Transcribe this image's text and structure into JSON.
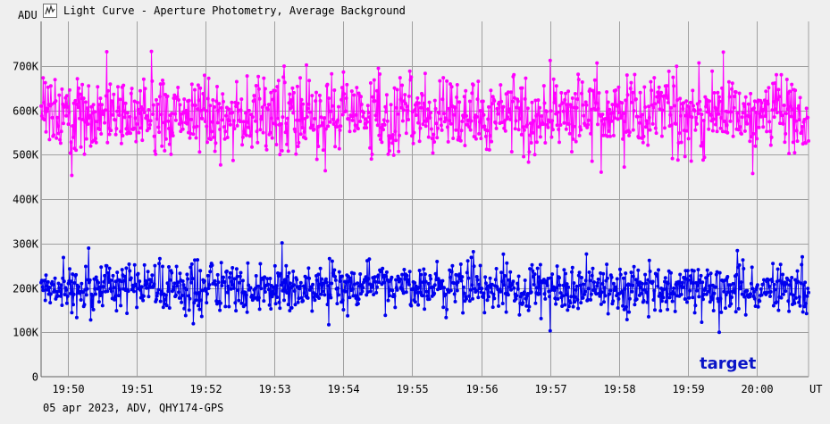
{
  "window": {
    "title": "Light Curve - Aperture Photometry, Average Background",
    "footer": "05 apr 2023, ADV, QHY174-GPS"
  },
  "icons": {
    "app": "light-curve-app-icon"
  },
  "colors": {
    "background": "#efefef",
    "grid": "#a0a0a0",
    "series_target": "#0000ee",
    "series_label": "#0a14c8",
    "series_comparison": "#ff00ff"
  },
  "chart_data": {
    "type": "line",
    "title": "Light Curve - Aperture Photometry, Average Background",
    "ylabel": "ADU",
    "xlabel": "UT",
    "ylim": [
      0,
      800000
    ],
    "xlim": [
      "19:49:37",
      "20:00:45"
    ],
    "grid": true,
    "y_ticks": [
      0,
      100000,
      200000,
      300000,
      400000,
      500000,
      600000,
      700000
    ],
    "y_tick_labels": [
      "0",
      "100K",
      "200K",
      "300K",
      "400K",
      "500K",
      "600K",
      "700K"
    ],
    "x_tick_labels": [
      "19:50",
      "19:51",
      "19:52",
      "19:53",
      "19:54",
      "19:55",
      "19:56",
      "19:57",
      "19:58",
      "19:59",
      "20:00"
    ],
    "markers": true,
    "series": [
      {
        "name": "target",
        "color": "#0000ee",
        "mean": 200000,
        "spread": 28000,
        "min": 90000,
        "max": 325000,
        "approx_points": 1100
      },
      {
        "color": "#ff00ff",
        "mean": 590000,
        "spread": 45000,
        "min": 430000,
        "max": 765000,
        "approx_points": 1100
      }
    ]
  }
}
